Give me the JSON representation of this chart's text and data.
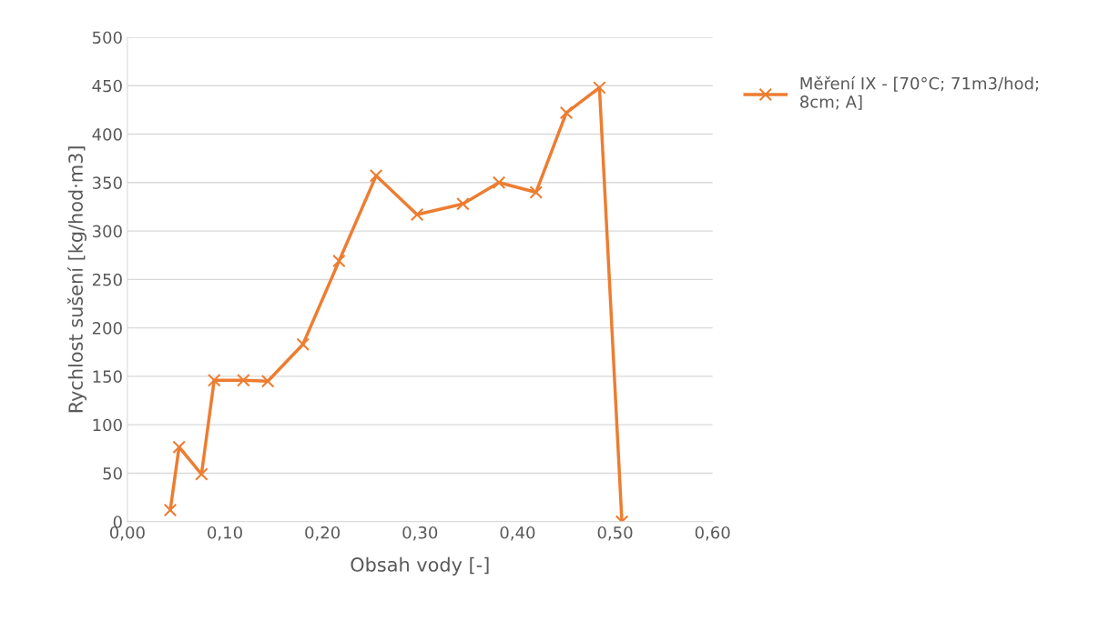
{
  "chart_data": {
    "type": "line",
    "xlabel": "Obsah vody [-]",
    "ylabel": "Rychlost sušení [kg/hod·m3]",
    "x": [
      0.044,
      0.053,
      0.076,
      0.089,
      0.119,
      0.144,
      0.18,
      0.217,
      0.255,
      0.297,
      0.344,
      0.381,
      0.419,
      0.45,
      0.484,
      0.507
    ],
    "series": [
      {
        "name": "Měření IX - [70°C; 71m3/hod; 8cm; A]",
        "color": "#ed7d31",
        "values": [
          12,
          77,
          49,
          146,
          146,
          145,
          183,
          269,
          357,
          317,
          328,
          350,
          340,
          422,
          448,
          0
        ]
      }
    ],
    "xlim": [
      0,
      0.6
    ],
    "xticks": [
      {
        "value": 0,
        "label": "0,00"
      },
      {
        "value": 0.1,
        "label": "0,10"
      },
      {
        "value": 0.2,
        "label": "0,20"
      },
      {
        "value": 0.3,
        "label": "0,30"
      },
      {
        "value": 0.4,
        "label": "0,40"
      },
      {
        "value": 0.5,
        "label": "0,50"
      },
      {
        "value": 0.6,
        "label": "0,60"
      }
    ],
    "ylim": [
      0,
      500
    ],
    "yticks": [
      0,
      50,
      100,
      150,
      200,
      250,
      300,
      350,
      400,
      450,
      500
    ],
    "grid": "y",
    "legend": "right",
    "marker": "cross",
    "line_style": "solid"
  }
}
